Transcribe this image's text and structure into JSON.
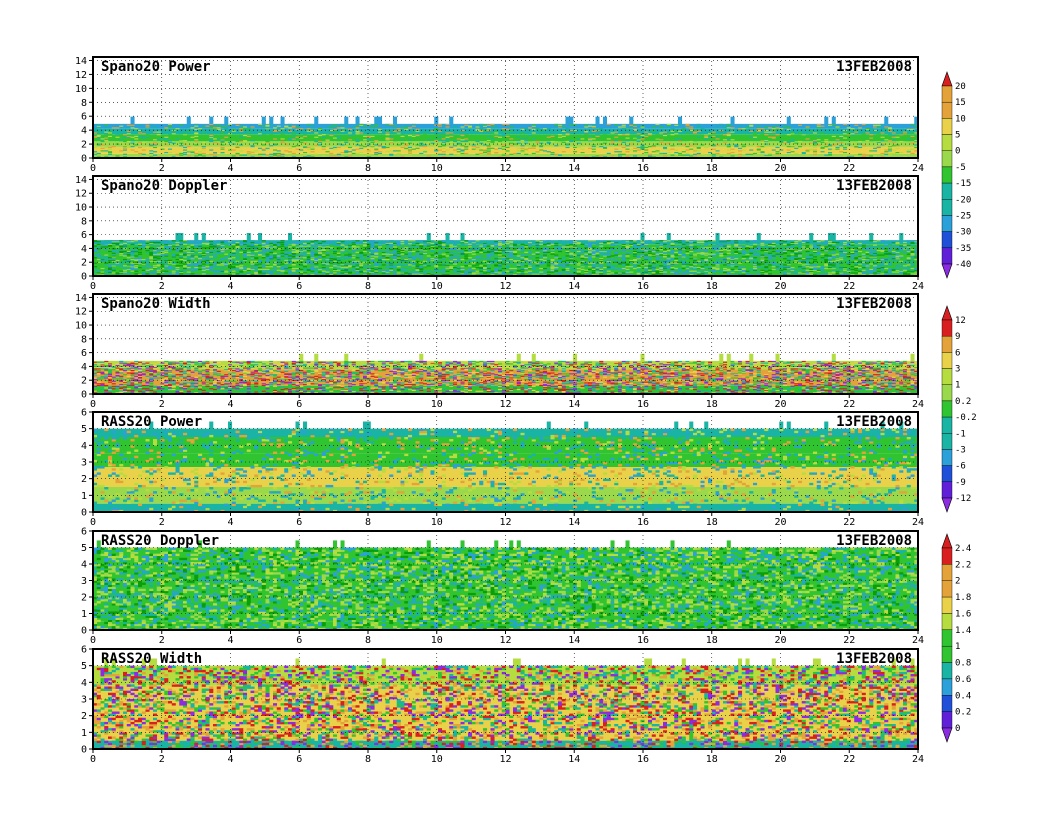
{
  "chart_data": [
    {
      "type": "heatmap",
      "title": "Spano20  Power",
      "date": "13FEB2008",
      "x_ticks": [
        "0",
        "2",
        "4",
        "6",
        "8",
        "10",
        "12",
        "14",
        "16",
        "18",
        "20",
        "22",
        "24"
      ],
      "y_ticks": [
        "0",
        "2",
        "4",
        "6",
        "8",
        "10",
        "12",
        "14"
      ],
      "xlim": [
        0,
        24
      ],
      "ylim": [
        0,
        14.5
      ],
      "grid": true,
      "bands": [
        {
          "ymin": 0.0,
          "ymax": 0.6,
          "color": "#9ad84c"
        },
        {
          "ymin": 0.6,
          "ymax": 1.6,
          "color": "#e9d24a"
        },
        {
          "ymin": 1.6,
          "ymax": 2.4,
          "color": "#9ad84c"
        },
        {
          "ymin": 2.4,
          "ymax": 3.4,
          "color": "#31c431"
        },
        {
          "ymin": 3.4,
          "ymax": 4.2,
          "color": "#19b4a4"
        },
        {
          "ymin": 4.2,
          "ymax": 4.9,
          "color": "#2ca0d8"
        }
      ],
      "speckle": [
        "#e3a33a",
        "#31c431",
        "#b6dd3f",
        "#19b4a4"
      ],
      "speckle_density": 0.18
    },
    {
      "type": "heatmap",
      "title": "Spano20  Doppler",
      "date": "13FEB2008",
      "x_ticks": [
        "0",
        "2",
        "4",
        "6",
        "8",
        "10",
        "12",
        "14",
        "16",
        "18",
        "20",
        "22",
        "24"
      ],
      "y_ticks": [
        "0",
        "2",
        "4",
        "6",
        "8",
        "10",
        "12",
        "14"
      ],
      "xlim": [
        0,
        24
      ],
      "ylim": [
        0,
        14.5
      ],
      "grid": true,
      "bands": [
        {
          "ymin": 0.0,
          "ymax": 4.6,
          "color": "#31c431"
        },
        {
          "ymin": 4.6,
          "ymax": 5.2,
          "color": "#19b4a4"
        }
      ],
      "speckle": [
        "#19b4a4",
        "#2ca0d8",
        "#9ad84c",
        "#0a9f0a"
      ],
      "speckle_density": 0.45
    },
    {
      "type": "heatmap",
      "title": "Spano20  Width",
      "date": "13FEB2008",
      "x_ticks": [
        "0",
        "2",
        "4",
        "6",
        "8",
        "10",
        "12",
        "14",
        "16",
        "18",
        "20",
        "22",
        "24"
      ],
      "y_ticks": [
        "0",
        "2",
        "4",
        "6",
        "8",
        "10",
        "12",
        "14"
      ],
      "xlim": [
        0,
        24
      ],
      "ylim": [
        0,
        14.5
      ],
      "grid": true,
      "bands": [
        {
          "ymin": 0.0,
          "ymax": 1.2,
          "color": "#31c431"
        },
        {
          "ymin": 1.2,
          "ymax": 3.6,
          "color": "#e3a33a"
        },
        {
          "ymin": 3.6,
          "ymax": 4.8,
          "color": "#b6dd3f"
        }
      ],
      "speckle": [
        "#d92020",
        "#19b4a4",
        "#31c431",
        "#e9d24a",
        "#8b2be2"
      ],
      "speckle_density": 0.4
    },
    {
      "type": "heatmap",
      "title": "RASS20  Power",
      "date": "13FEB2008",
      "x_ticks": [
        "0",
        "2",
        "4",
        "6",
        "8",
        "10",
        "12",
        "14",
        "16",
        "18",
        "20",
        "22",
        "24"
      ],
      "y_ticks": [
        "0",
        "1",
        "2",
        "3",
        "4",
        "5",
        "6"
      ],
      "xlim": [
        0,
        24
      ],
      "ylim": [
        0,
        6
      ],
      "grid": true,
      "bands": [
        {
          "ymin": 0.0,
          "ymax": 0.5,
          "color": "#19b4a4"
        },
        {
          "ymin": 0.5,
          "ymax": 1.5,
          "color": "#9ad84c"
        },
        {
          "ymin": 1.5,
          "ymax": 2.7,
          "color": "#e9d24a"
        },
        {
          "ymin": 2.7,
          "ymax": 3.5,
          "color": "#31c431"
        },
        {
          "ymin": 3.5,
          "ymax": 4.5,
          "color": "#31c431"
        },
        {
          "ymin": 4.5,
          "ymax": 5.0,
          "color": "#19b4a4"
        }
      ],
      "speckle": [
        "#e3a33a",
        "#19b4a4",
        "#2ca0d8",
        "#b6dd3f"
      ],
      "speckle_density": 0.2
    },
    {
      "type": "heatmap",
      "title": "RASS20  Doppler",
      "date": "13FEB2008",
      "x_ticks": [
        "0",
        "2",
        "4",
        "6",
        "8",
        "10",
        "12",
        "14",
        "16",
        "18",
        "20",
        "22",
        "24"
      ],
      "y_ticks": [
        "0",
        "1",
        "2",
        "3",
        "4",
        "5",
        "6"
      ],
      "xlim": [
        0,
        24
      ],
      "ylim": [
        0,
        6
      ],
      "grid": true,
      "bands": [
        {
          "ymin": 0.0,
          "ymax": 0.5,
          "color": "#31c431"
        },
        {
          "ymin": 0.5,
          "ymax": 5.0,
          "color": "#31c431"
        }
      ],
      "speckle": [
        "#19b4a4",
        "#9ad84c",
        "#0a9f0a",
        "#2ca0d8",
        "#b6dd3f"
      ],
      "speckle_density": 0.5
    },
    {
      "type": "heatmap",
      "title": "RASS20  Width",
      "date": "13FEB2008",
      "x_ticks": [
        "0",
        "2",
        "4",
        "6",
        "8",
        "10",
        "12",
        "14",
        "16",
        "18",
        "20",
        "22",
        "24"
      ],
      "y_ticks": [
        "0",
        "1",
        "2",
        "3",
        "4",
        "5",
        "6"
      ],
      "xlim": [
        0,
        24
      ],
      "ylim": [
        0,
        6
      ],
      "grid": true,
      "bands": [
        {
          "ymin": 0.0,
          "ymax": 0.5,
          "color": "#19b4a4"
        },
        {
          "ymin": 0.5,
          "ymax": 3.8,
          "color": "#e9d24a"
        },
        {
          "ymin": 3.8,
          "ymax": 5.0,
          "color": "#b6dd3f"
        }
      ],
      "speckle": [
        "#d92020",
        "#e3a33a",
        "#31c431",
        "#19b4a4",
        "#8b2be2"
      ],
      "speckle_density": 0.45
    }
  ],
  "colorbars": [
    {
      "labels": [
        "20",
        "15",
        "10",
        "5",
        "0",
        "-5",
        "-15",
        "-20",
        "-25",
        "-30",
        "-35",
        "-40"
      ],
      "colors": [
        "#d92020",
        "#e3a33a",
        "#e3a33a",
        "#e9d24a",
        "#b6dd3f",
        "#9ad84c",
        "#31c431",
        "#19b4a4",
        "#19b4a4",
        "#2ca0d8",
        "#2050d8",
        "#6020d8",
        "#8b2be2"
      ]
    },
    {
      "labels": [
        "12",
        "9",
        "6",
        "3",
        "1",
        "0.2",
        "-0.2",
        "-1",
        "-3",
        "-6",
        "-9",
        "-12"
      ],
      "colors": [
        "#d92020",
        "#d92020",
        "#e3a33a",
        "#e9d24a",
        "#b6dd3f",
        "#9ad84c",
        "#31c431",
        "#19b4a4",
        "#19b4a4",
        "#2ca0d8",
        "#2050d8",
        "#6020d8",
        "#8b2be2"
      ]
    },
    {
      "labels": [
        "2.4",
        "2.2",
        "2",
        "1.8",
        "1.6",
        "1.4",
        "1",
        "0.8",
        "0.6",
        "0.4",
        "0.2",
        "0"
      ],
      "colors": [
        "#d92020",
        "#d92020",
        "#e3a33a",
        "#e3a33a",
        "#e9d24a",
        "#b6dd3f",
        "#31c431",
        "#31c431",
        "#19b4a4",
        "#2ca0d8",
        "#2050d8",
        "#6020d8",
        "#8b2be2"
      ]
    }
  ]
}
